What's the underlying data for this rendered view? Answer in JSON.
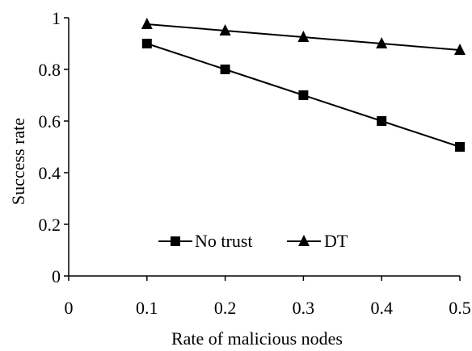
{
  "chart_data": {
    "type": "line",
    "xlabel": "Rate of malicious nodes",
    "ylabel": "Success rate",
    "xlim": [
      0,
      0.5
    ],
    "ylim": [
      0,
      1
    ],
    "x_ticks": [
      "0",
      "0.1",
      "0.2",
      "0.3",
      "0.4",
      "0.5"
    ],
    "y_ticks": [
      "0",
      "0.2",
      "0.4",
      "0.6",
      "0.8",
      "1"
    ],
    "grid": false,
    "legend_position": "bottom-center",
    "series": [
      {
        "name": "No trust",
        "marker": "square",
        "color": "#000000",
        "x": [
          0.1,
          0.2,
          0.3,
          0.4,
          0.5
        ],
        "values": [
          0.9,
          0.8,
          0.7,
          0.6,
          0.5
        ]
      },
      {
        "name": "DT",
        "marker": "triangle",
        "color": "#000000",
        "x": [
          0.1,
          0.2,
          0.3,
          0.4,
          0.5
        ],
        "values": [
          0.975,
          0.95,
          0.925,
          0.9,
          0.875
        ]
      }
    ]
  }
}
